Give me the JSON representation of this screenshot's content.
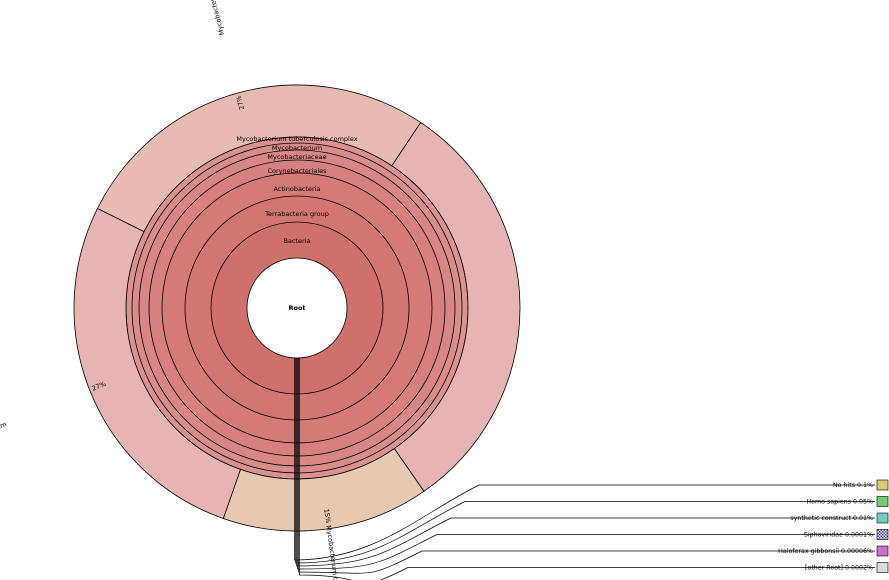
{
  "chart_data": {
    "type": "sunburst",
    "center_label": "Root",
    "lineage": [
      "Bacteria",
      "Terrabacteria group",
      "Actinobacteria",
      "Corynebacteriales",
      "Mycobacteriaceae",
      "Mycobacterium",
      "Mycobacterium tuberculosis complex"
    ],
    "lineage_color": "#d0706c",
    "leaves": [
      {
        "name": "Mycobacterium tuberculosis variant bovis",
        "percent": "27%",
        "fraction": 0.27,
        "color": "#e6bcb2"
      },
      {
        "name": "",
        "percent": "",
        "fraction": 0.31,
        "color": "#e6b4b2"
      },
      {
        "name": "Mycobacterium canettii",
        "percent": "15%",
        "fraction": 0.15,
        "color": "#e7c8b1"
      },
      {
        "name": "Mycobacterium tuberculosis variant africanum",
        "percent": "27%",
        "fraction": 0.27,
        "color": "#e6b4b2"
      }
    ],
    "legend": [
      {
        "name": "No hits",
        "percent": "0.1%",
        "color": "#d4cc70",
        "pattern": false
      },
      {
        "name": "Homo sapiens",
        "percent": "0.05%",
        "color": "#72cc72",
        "pattern": false
      },
      {
        "name": "synthetic construct",
        "percent": "0.01%",
        "color": "#70ccc4",
        "pattern": false
      },
      {
        "name": "Siphoviridae",
        "percent": "0.0001%",
        "color": "#4848a8",
        "pattern": true
      },
      {
        "name": "Haloferax gibbonsii",
        "percent": "0.00006%",
        "color": "#c870cc",
        "pattern": false
      },
      {
        "name": "[other Root]",
        "percent": "0.0002%",
        "color": "#dcdcdc",
        "pattern": false
      }
    ]
  }
}
